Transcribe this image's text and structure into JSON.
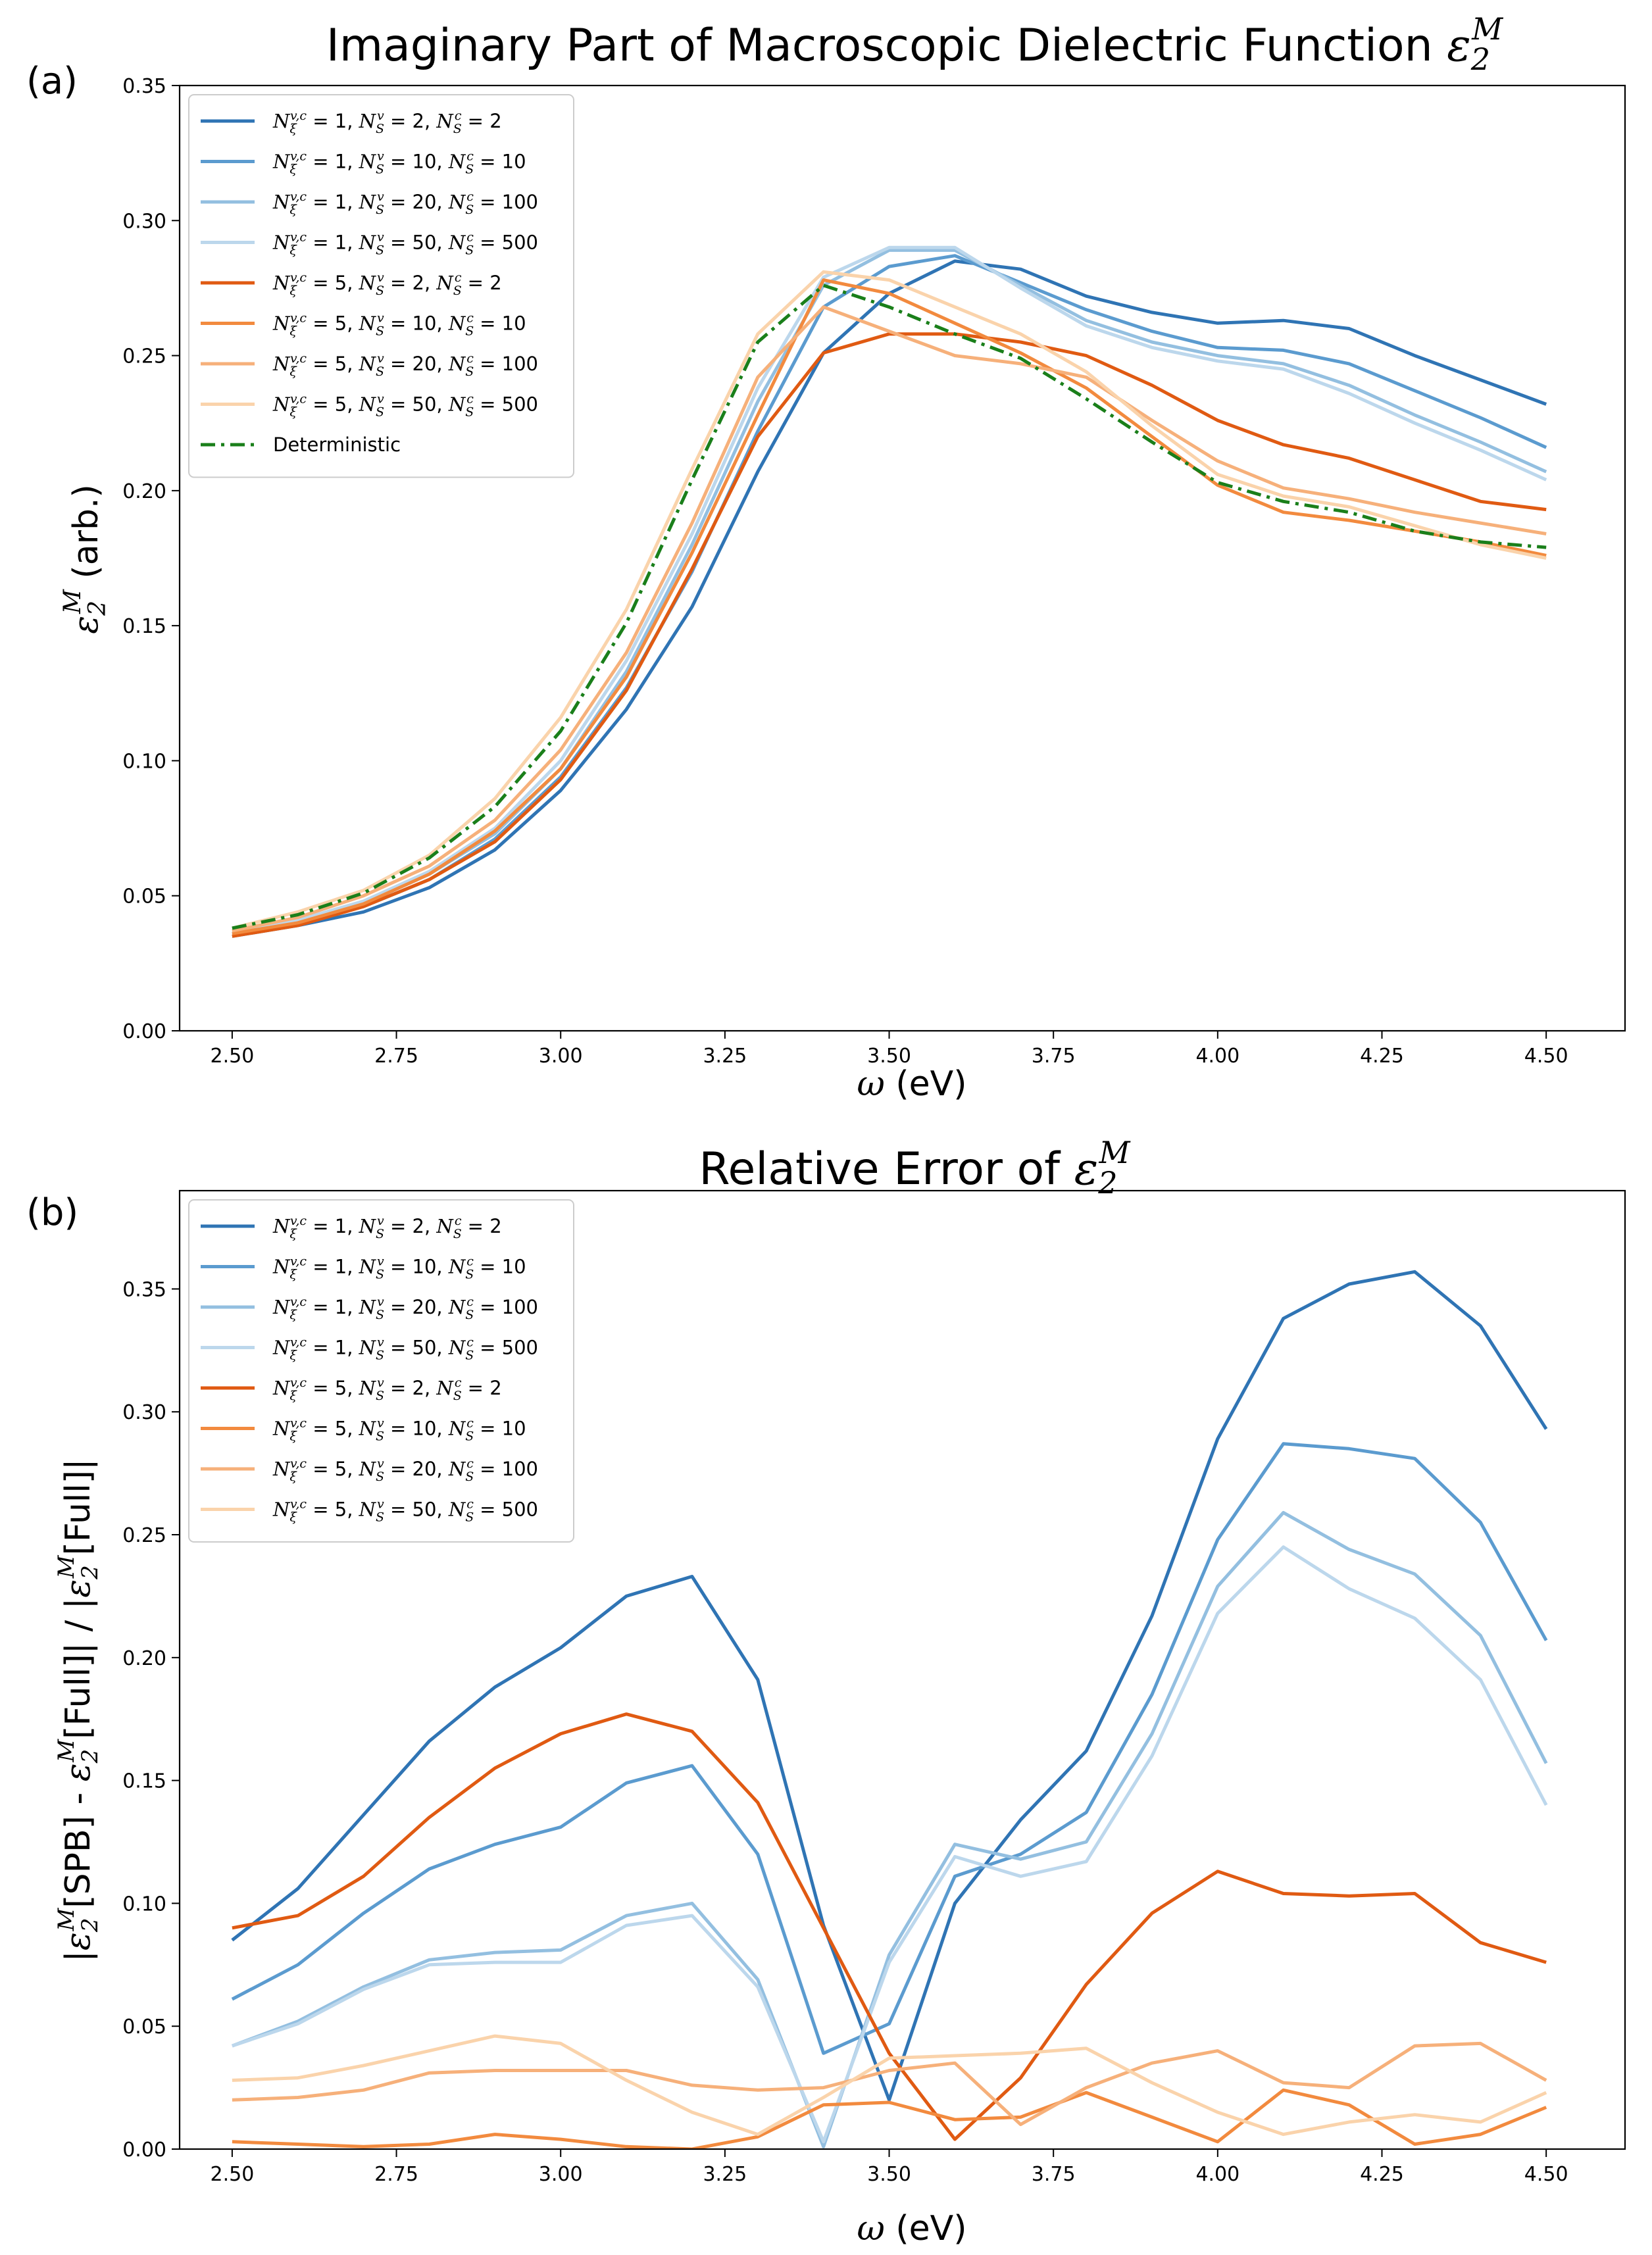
{
  "figure": {
    "panel_a_label": "(a)",
    "panel_b_label": "(b)"
  },
  "chart_data": [
    {
      "type": "line",
      "title": "Imaginary Part of Macroscopic Dielectric Function ε₂ᴹ",
      "title_text": "Imaginary Part of Macroscopic Dielectric Function ",
      "title_symbol": "ε",
      "title_sub": "2",
      "title_sup": "M",
      "xlabel": "ω (eV)",
      "ylabel": "ε₂ᴹ (arb.)",
      "xlim": [
        2.42,
        4.62
      ],
      "ylim": [
        0.0,
        0.35
      ],
      "xticks": [
        "2.50",
        "2.75",
        "3.00",
        "3.25",
        "3.50",
        "3.75",
        "4.00",
        "4.25",
        "4.50"
      ],
      "yticks": [
        "0.00",
        "0.05",
        "0.10",
        "0.15",
        "0.20",
        "0.25",
        "0.30",
        "0.35"
      ],
      "legend_position": "top-left",
      "x": [
        2.5,
        2.6,
        2.7,
        2.8,
        2.9,
        3.0,
        3.1,
        3.2,
        3.3,
        3.4,
        3.5,
        3.6,
        3.7,
        3.8,
        3.9,
        4.0,
        4.1,
        4.2,
        4.3,
        4.4,
        4.5
      ],
      "series": [
        {
          "name": "N_ξ^{v,c} = 1, N_S^v = 2, N_S^c = 2",
          "xi": "1",
          "nv": "2",
          "nc": "2",
          "color": "#2f74b4",
          "dash": "solid",
          "values": [
            0.035,
            0.039,
            0.044,
            0.053,
            0.067,
            0.089,
            0.119,
            0.157,
            0.207,
            0.251,
            0.273,
            0.285,
            0.282,
            0.272,
            0.266,
            0.262,
            0.263,
            0.26,
            0.25,
            0.241,
            0.232
          ]
        },
        {
          "name": "N_ξ^{v,c} = 1, N_S^v = 10, N_S^c = 10",
          "xi": "1",
          "nv": "10",
          "nc": "10",
          "color": "#5b9bcf",
          "dash": "solid",
          "values": [
            0.036,
            0.04,
            0.046,
            0.056,
            0.071,
            0.094,
            0.127,
            0.17,
            0.222,
            0.268,
            0.283,
            0.287,
            0.277,
            0.267,
            0.259,
            0.253,
            0.252,
            0.247,
            0.237,
            0.227,
            0.216
          ]
        },
        {
          "name": "N_ξ^{v,c} = 1, N_S^v = 20, N_S^c = 100",
          "xi": "1",
          "nv": "20",
          "nc": "100",
          "color": "#93bfe0",
          "dash": "solid",
          "values": [
            0.036,
            0.041,
            0.047,
            0.058,
            0.073,
            0.097,
            0.133,
            0.18,
            0.233,
            0.276,
            0.289,
            0.289,
            0.276,
            0.263,
            0.255,
            0.25,
            0.247,
            0.239,
            0.228,
            0.218,
            0.207
          ]
        },
        {
          "name": "N_ξ^{v,c} = 1, N_S^v = 50, N_S^c = 500",
          "xi": "1",
          "nv": "50",
          "nc": "500",
          "color": "#bcd7ec",
          "dash": "solid",
          "values": [
            0.037,
            0.041,
            0.048,
            0.059,
            0.075,
            0.1,
            0.137,
            0.184,
            0.238,
            0.279,
            0.29,
            0.29,
            0.275,
            0.261,
            0.253,
            0.248,
            0.245,
            0.236,
            0.225,
            0.215,
            0.204
          ]
        },
        {
          "name": "N_ξ^{v,c} = 5, N_S^v = 2, N_S^c = 2",
          "xi": "5",
          "nv": "2",
          "nc": "2",
          "color": "#e05a12",
          "dash": "solid",
          "values": [
            0.035,
            0.039,
            0.046,
            0.056,
            0.07,
            0.093,
            0.126,
            0.171,
            0.22,
            0.251,
            0.258,
            0.258,
            0.255,
            0.25,
            0.239,
            0.226,
            0.217,
            0.212,
            0.204,
            0.196,
            0.193
          ]
        },
        {
          "name": "N_ξ^{v,c} = 5, N_S^v = 10, N_S^c = 10",
          "xi": "5",
          "nv": "10",
          "nc": "10",
          "color": "#f28a3e",
          "dash": "solid",
          "values": [
            0.036,
            0.04,
            0.047,
            0.058,
            0.074,
            0.097,
            0.131,
            0.177,
            0.228,
            0.278,
            0.273,
            0.262,
            0.251,
            0.238,
            0.22,
            0.202,
            0.192,
            0.189,
            0.185,
            0.181,
            0.176
          ]
        },
        {
          "name": "N_ξ^{v,c} = 5, N_S^v = 20, N_S^c = 100",
          "xi": "5",
          "nv": "20",
          "nc": "100",
          "color": "#f6b07a",
          "dash": "solid",
          "values": [
            0.037,
            0.042,
            0.05,
            0.061,
            0.078,
            0.104,
            0.14,
            0.188,
            0.242,
            0.268,
            0.259,
            0.25,
            0.247,
            0.242,
            0.226,
            0.211,
            0.201,
            0.197,
            0.192,
            0.188,
            0.184
          ]
        },
        {
          "name": "N_ξ^{v,c} = 5, N_S^v = 50, N_S^c = 500",
          "xi": "5",
          "nv": "50",
          "nc": "500",
          "color": "#fad3ab",
          "dash": "solid",
          "values": [
            0.038,
            0.044,
            0.052,
            0.065,
            0.086,
            0.116,
            0.156,
            0.208,
            0.258,
            0.281,
            0.278,
            0.268,
            0.258,
            0.244,
            0.224,
            0.206,
            0.198,
            0.194,
            0.187,
            0.18,
            0.175
          ]
        },
        {
          "name": "Deterministic",
          "color": "#1a7f1a",
          "dash": "dashdot",
          "values": [
            0.038,
            0.043,
            0.051,
            0.064,
            0.083,
            0.111,
            0.151,
            0.204,
            0.255,
            0.276,
            0.268,
            0.258,
            0.249,
            0.234,
            0.218,
            0.203,
            0.196,
            0.192,
            0.185,
            0.181,
            0.179
          ]
        }
      ]
    },
    {
      "type": "line",
      "title": "Relative Error of ε₂ᴹ",
      "title_text": "Relative Error of ",
      "title_symbol": "ε",
      "title_sub": "2",
      "title_sup": "M",
      "xlabel": "ω (eV)",
      "ylabel": "|ε₂ᴹ[SPB] - ε₂ᴹ[Full]| / |ε₂ᴹ[Full]|",
      "ylabel_parts": [
        "|",
        "[SPB] - ",
        "[Full]| / |",
        "[Full]|"
      ],
      "xlim": [
        2.42,
        4.62
      ],
      "ylim": [
        0.0,
        0.39
      ],
      "xticks": [
        "2.50",
        "2.75",
        "3.00",
        "3.25",
        "3.50",
        "3.75",
        "4.00",
        "4.25",
        "4.50"
      ],
      "yticks": [
        "0.00",
        "0.05",
        "0.10",
        "0.15",
        "0.20",
        "0.25",
        "0.30",
        "0.35"
      ],
      "legend_position": "top-left",
      "x": [
        2.5,
        2.6,
        2.7,
        2.8,
        2.9,
        3.0,
        3.1,
        3.2,
        3.3,
        3.4,
        3.5,
        3.6,
        3.7,
        3.8,
        3.9,
        4.0,
        4.1,
        4.2,
        4.3,
        4.4,
        4.5
      ],
      "series": [
        {
          "name": "N_ξ^{v,c} = 1, N_S^v = 2, N_S^c = 2",
          "xi": "1",
          "nv": "2",
          "nc": "2",
          "color": "#2f74b4",
          "dash": "solid",
          "values": [
            0.085,
            0.106,
            0.136,
            0.166,
            0.188,
            0.204,
            0.225,
            0.233,
            0.191,
            0.091,
            0.02,
            0.1,
            0.134,
            0.162,
            0.217,
            0.289,
            0.338,
            0.352,
            0.357,
            0.335,
            0.293
          ]
        },
        {
          "name": "N_ξ^{v,c} = 1, N_S^v = 10, N_S^c = 10",
          "xi": "1",
          "nv": "10",
          "nc": "10",
          "color": "#5b9bcf",
          "dash": "solid",
          "values": [
            0.061,
            0.075,
            0.096,
            0.114,
            0.124,
            0.131,
            0.149,
            0.156,
            0.12,
            0.039,
            0.051,
            0.111,
            0.12,
            0.137,
            0.185,
            0.248,
            0.287,
            0.285,
            0.281,
            0.255,
            0.207
          ]
        },
        {
          "name": "N_ξ^{v,c} = 1, N_S^v = 20, N_S^c = 100",
          "xi": "1",
          "nv": "20",
          "nc": "100",
          "color": "#93bfe0",
          "dash": "solid",
          "values": [
            0.042,
            0.052,
            0.066,
            0.077,
            0.08,
            0.081,
            0.095,
            0.1,
            0.069,
            0.001,
            0.079,
            0.124,
            0.118,
            0.125,
            0.169,
            0.229,
            0.259,
            0.244,
            0.234,
            0.209,
            0.157
          ]
        },
        {
          "name": "N_ξ^{v,c} = 1, N_S^v = 50, N_S^c = 500",
          "xi": "1",
          "nv": "50",
          "nc": "500",
          "color": "#bcd7ec",
          "dash": "solid",
          "values": [
            0.042,
            0.051,
            0.065,
            0.075,
            0.076,
            0.076,
            0.091,
            0.095,
            0.066,
            0.003,
            0.076,
            0.119,
            0.111,
            0.117,
            0.16,
            0.218,
            0.245,
            0.228,
            0.216,
            0.191,
            0.14
          ]
        },
        {
          "name": "N_ξ^{v,c} = 5, N_S^v = 2, N_S^c = 2",
          "xi": "5",
          "nv": "2",
          "nc": "2",
          "color": "#e05a12",
          "dash": "solid",
          "values": [
            0.09,
            0.095,
            0.111,
            0.135,
            0.155,
            0.169,
            0.177,
            0.17,
            0.141,
            0.09,
            0.039,
            0.004,
            0.029,
            0.067,
            0.096,
            0.113,
            0.104,
            0.103,
            0.104,
            0.084,
            0.076
          ]
        },
        {
          "name": "N_ξ^{v,c} = 5, N_S^v = 10, N_S^c = 10",
          "xi": "5",
          "nv": "10",
          "nc": "10",
          "color": "#f28a3e",
          "dash": "solid",
          "values": [
            0.003,
            0.002,
            0.001,
            0.002,
            0.006,
            0.004,
            0.001,
            0.0,
            0.005,
            0.018,
            0.019,
            0.012,
            0.013,
            0.023,
            0.013,
            0.003,
            0.024,
            0.018,
            0.002,
            0.006,
            0.017
          ]
        },
        {
          "name": "N_ξ^{v,c} = 5, N_S^v = 20, N_S^c = 100",
          "xi": "5",
          "nv": "20",
          "nc": "100",
          "color": "#f6b07a",
          "dash": "solid",
          "values": [
            0.02,
            0.021,
            0.024,
            0.031,
            0.032,
            0.032,
            0.032,
            0.026,
            0.024,
            0.025,
            0.032,
            0.035,
            0.01,
            0.025,
            0.035,
            0.04,
            0.027,
            0.025,
            0.042,
            0.043,
            0.028
          ]
        },
        {
          "name": "N_ξ^{v,c} = 5, N_S^v = 50, N_S^c = 500",
          "xi": "5",
          "nv": "50",
          "nc": "500",
          "color": "#fad3ab",
          "dash": "solid",
          "values": [
            0.028,
            0.029,
            0.034,
            0.04,
            0.046,
            0.043,
            0.028,
            0.015,
            0.006,
            0.021,
            0.037,
            0.038,
            0.039,
            0.041,
            0.027,
            0.015,
            0.006,
            0.011,
            0.014,
            0.011,
            0.023
          ]
        }
      ]
    }
  ]
}
